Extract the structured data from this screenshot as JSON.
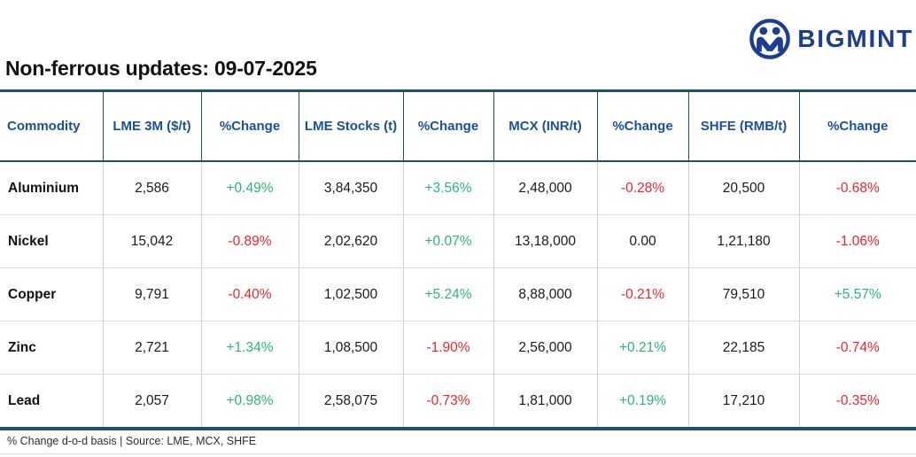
{
  "page": {
    "title": "Non-ferrous updates: 09-07-2025",
    "footnote": "% Change d-o-d basis | Source: LME, MCX, SHFE"
  },
  "brand": {
    "name": "BIGMINT",
    "logo_icon": "two-people-in-circle-icon"
  },
  "colors": {
    "brand_blue": "#1b3e91",
    "header_blue": "#1a4f9d",
    "border_blue": "#1f4e79",
    "positive_green": "#2bb673",
    "negative_red": "#e8262a",
    "grid_gray": "#cfcfcf"
  },
  "chart_data": {
    "type": "table",
    "title": "Non-ferrous updates: 09-07-2025",
    "footnote": "% Change d-o-d basis | Source: LME, MCX, SHFE",
    "columns": [
      "Commodity",
      "LME 3M ($/t)",
      "%Change",
      "LME Stocks (t)",
      "%Change",
      "MCX (INR/t)",
      "%Change",
      "SHFE (RMB/t)",
      "%Change"
    ],
    "rows": [
      [
        "Aluminium",
        "2,586",
        "+0.49%",
        "3,84,350",
        "+3.56%",
        "2,48,000",
        "-0.28%",
        "20,500",
        "-0.68%"
      ],
      [
        "Nickel",
        "15,042",
        "-0.89%",
        "2,02,620",
        "+0.07%",
        "13,18,000",
        "0.00",
        "1,21,180",
        "-1.06%"
      ],
      [
        "Copper",
        "9,791",
        "-0.40%",
        "1,02,500",
        "+5.24%",
        "8,88,000",
        "-0.21%",
        "79,510",
        "+5.57%"
      ],
      [
        "Zinc",
        "2,721",
        "+1.34%",
        "1,08,500",
        "-1.90%",
        "2,56,000",
        "+0.21%",
        "22,185",
        "-0.74%"
      ],
      [
        "Lead",
        "2,057",
        "+0.98%",
        "2,58,075",
        "-0.73%",
        "1,81,000",
        "+0.19%",
        "17,210",
        "-0.35%"
      ]
    ]
  }
}
